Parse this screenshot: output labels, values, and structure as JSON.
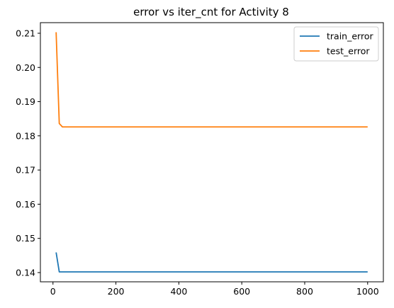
{
  "chart_data": {
    "type": "line",
    "title": "error vs iter_cnt for Activity 8",
    "xlabel": "",
    "ylabel": "",
    "xlim": [
      -40,
      1050
    ],
    "ylim": [
      0.1373,
      0.2131
    ],
    "xticks": [
      0,
      200,
      400,
      600,
      800,
      1000
    ],
    "xtick_labels": [
      "0",
      "200",
      "400",
      "600",
      "800",
      "1000"
    ],
    "yticks": [
      0.14,
      0.15,
      0.16,
      0.17,
      0.18,
      0.19,
      0.2,
      0.21
    ],
    "ytick_labels": [
      "0.14",
      "0.15",
      "0.16",
      "0.17",
      "0.18",
      "0.19",
      "0.20",
      "0.21"
    ],
    "grid": false,
    "legend_position": "top-right",
    "series": [
      {
        "name": "train_error",
        "color": "#1f77b4",
        "x": [
          10,
          20,
          30,
          40,
          50,
          100,
          200,
          300,
          400,
          500,
          600,
          700,
          800,
          900,
          1000
        ],
        "y": [
          0.1459,
          0.1402,
          0.1402,
          0.1402,
          0.1402,
          0.1402,
          0.1402,
          0.1402,
          0.1402,
          0.1402,
          0.1402,
          0.1402,
          0.1402,
          0.1402,
          0.1402
        ]
      },
      {
        "name": "test_error",
        "color": "#ff7f0e",
        "x": [
          10,
          20,
          30,
          40,
          50,
          100,
          200,
          300,
          400,
          500,
          600,
          700,
          800,
          900,
          1000
        ],
        "y": [
          0.2103,
          0.1836,
          0.1826,
          0.1826,
          0.1826,
          0.1826,
          0.1826,
          0.1826,
          0.1826,
          0.1826,
          0.1826,
          0.1826,
          0.1826,
          0.1826,
          0.1826
        ]
      }
    ]
  }
}
